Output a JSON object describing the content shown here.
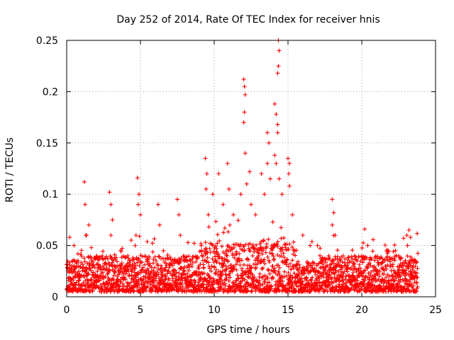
{
  "chart_data": {
    "type": "scatter",
    "title": "Day 252 of 2014, Rate Of TEC Index for receiver hnis",
    "xlabel": "GPS time / hours",
    "ylabel": "ROTI / TECUs",
    "xlim": [
      0,
      25
    ],
    "ylim": [
      0,
      0.25
    ],
    "xticks": [
      0,
      5,
      10,
      15,
      20,
      25
    ],
    "yticks": [
      0,
      0.05,
      0.1,
      0.15,
      0.2,
      0.25
    ],
    "xtick_labels": [
      "0",
      "5",
      "10",
      "15",
      "20",
      "25"
    ],
    "ytick_labels": [
      "0",
      "0.05",
      "0.1",
      "0.15",
      "0.2",
      "0.25"
    ],
    "grid": true,
    "marker": "+",
    "color": "#ff0000",
    "series": [
      {
        "name": "ROTI",
        "note": "dense background cloud between ~0.005 and ~0.04 TECUs for t in [0, 23.8] h, plus the prominent peaks listed",
        "base_band": [
          0.005,
          0.04
        ],
        "time_range": [
          0,
          23.8
        ],
        "points": [
          [
            0.2,
            0.058
          ],
          [
            0.5,
            0.05
          ],
          [
            1.2,
            0.112
          ],
          [
            1.25,
            0.09
          ],
          [
            1.5,
            0.07
          ],
          [
            1.3,
            0.06
          ],
          [
            2.9,
            0.102
          ],
          [
            3.0,
            0.09
          ],
          [
            3.1,
            0.075
          ],
          [
            3.0,
            0.06
          ],
          [
            4.8,
            0.116
          ],
          [
            4.9,
            0.1
          ],
          [
            4.85,
            0.09
          ],
          [
            5.0,
            0.08
          ],
          [
            4.7,
            0.06
          ],
          [
            6.2,
            0.09
          ],
          [
            6.3,
            0.07
          ],
          [
            7.5,
            0.095
          ],
          [
            7.6,
            0.08
          ],
          [
            7.7,
            0.06
          ],
          [
            9.4,
            0.135
          ],
          [
            9.5,
            0.12
          ],
          [
            9.45,
            0.105
          ],
          [
            9.6,
            0.08
          ],
          [
            9.9,
            0.1
          ],
          [
            10.3,
            0.12
          ],
          [
            10.6,
            0.09
          ],
          [
            10.9,
            0.13
          ],
          [
            11.0,
            0.105
          ],
          [
            11.3,
            0.08
          ],
          [
            11.8,
            0.1
          ],
          [
            12.0,
            0.212
          ],
          [
            12.05,
            0.205
          ],
          [
            12.1,
            0.197
          ],
          [
            12.05,
            0.18
          ],
          [
            12.0,
            0.17
          ],
          [
            12.1,
            0.14
          ],
          [
            12.2,
            0.11
          ],
          [
            12.4,
            0.122
          ],
          [
            12.5,
            0.09
          ],
          [
            12.8,
            0.08
          ],
          [
            13.2,
            0.12
          ],
          [
            13.4,
            0.1
          ],
          [
            13.6,
            0.16
          ],
          [
            13.7,
            0.15
          ],
          [
            13.6,
            0.13
          ],
          [
            13.8,
            0.115
          ],
          [
            14.1,
            0.188
          ],
          [
            14.2,
            0.178
          ],
          [
            14.3,
            0.168
          ],
          [
            14.3,
            0.16
          ],
          [
            14.35,
            0.25
          ],
          [
            14.4,
            0.24
          ],
          [
            14.35,
            0.225
          ],
          [
            14.3,
            0.218
          ],
          [
            14.1,
            0.138
          ],
          [
            14.2,
            0.13
          ],
          [
            14.4,
            0.115
          ],
          [
            14.6,
            0.1
          ],
          [
            15.0,
            0.135
          ],
          [
            15.1,
            0.13
          ],
          [
            15.05,
            0.12
          ],
          [
            15.1,
            0.108
          ],
          [
            15.3,
            0.08
          ],
          [
            16.0,
            0.06
          ],
          [
            16.5,
            0.05
          ],
          [
            17.0,
            0.05
          ],
          [
            18.0,
            0.095
          ],
          [
            18.1,
            0.082
          ],
          [
            18.0,
            0.07
          ],
          [
            18.2,
            0.06
          ],
          [
            19.5,
            0.04
          ],
          [
            20.2,
            0.066
          ],
          [
            20.4,
            0.05
          ],
          [
            21.8,
            0.045
          ],
          [
            22.5,
            0.04
          ],
          [
            23.2,
            0.065
          ],
          [
            23.3,
            0.058
          ],
          [
            23.1,
            0.05
          ]
        ]
      }
    ]
  }
}
